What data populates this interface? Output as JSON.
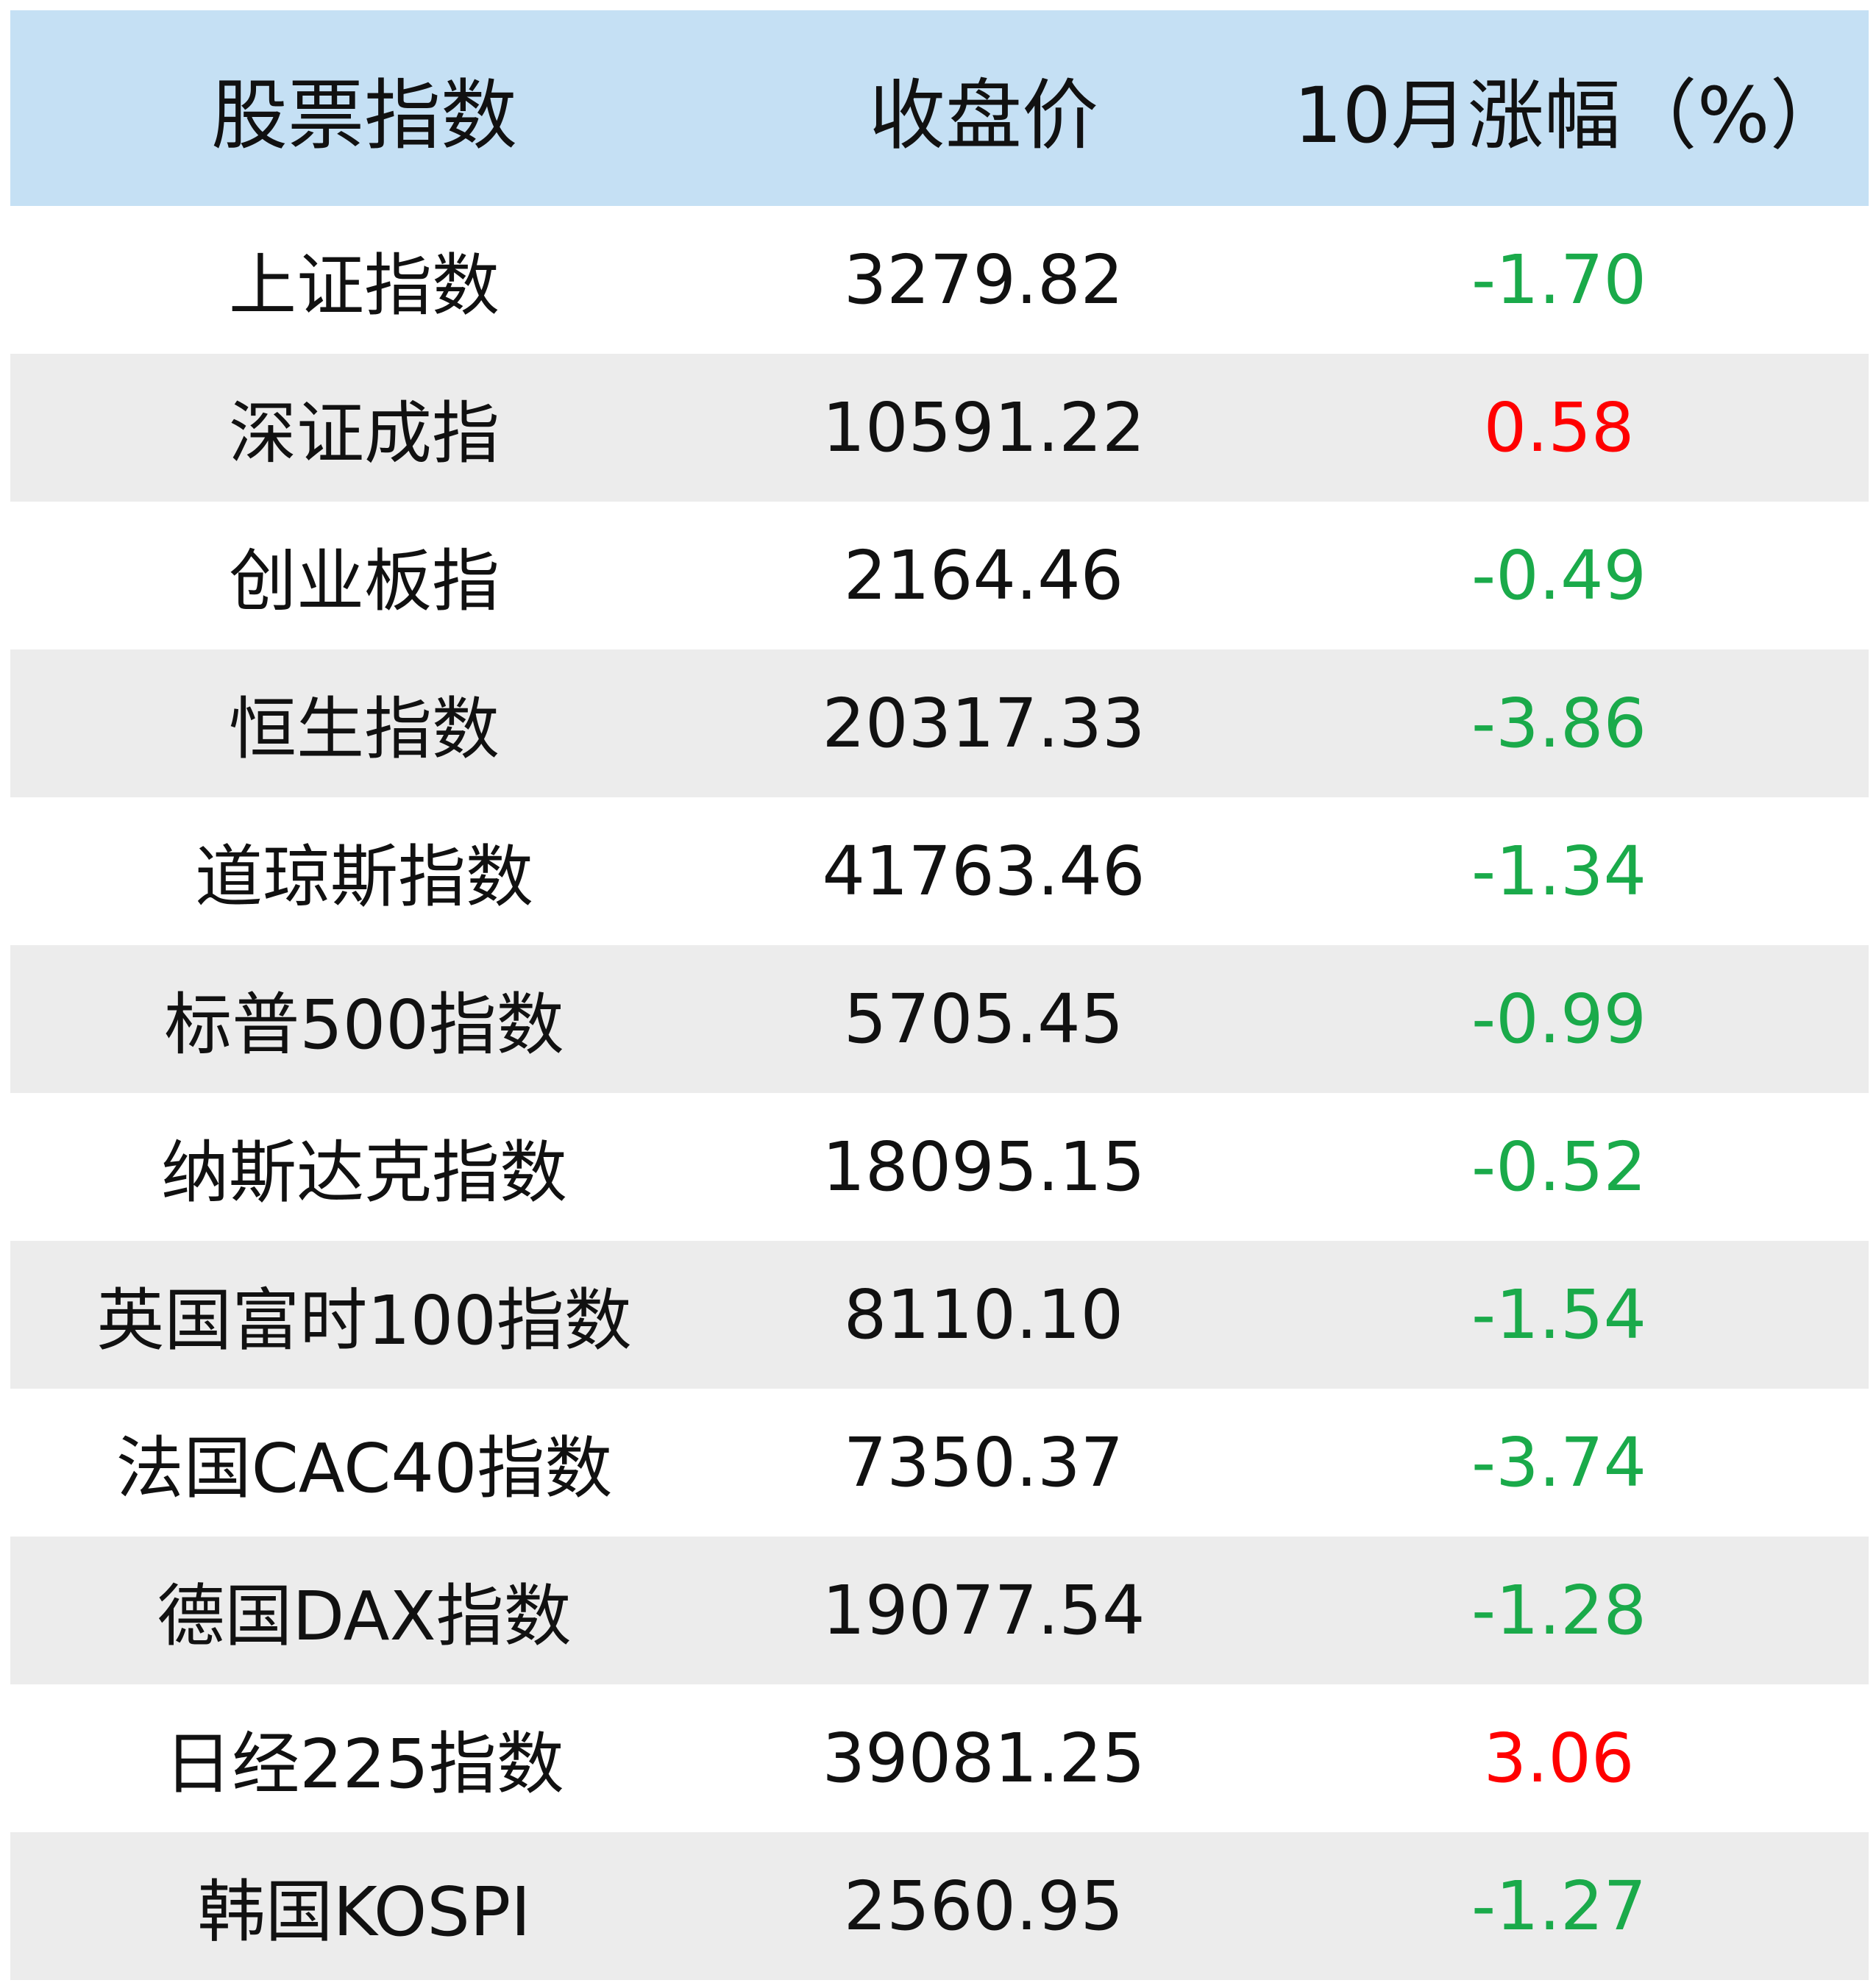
{
  "table": {
    "headers": [
      "股票指数",
      "收盘价",
      "10月涨幅（%）"
    ],
    "rows": [
      {
        "name": "上证指数",
        "close": "3279.82",
        "change": "-1.70",
        "direction": "down"
      },
      {
        "name": "深证成指",
        "close": "10591.22",
        "change": "0.58",
        "direction": "up"
      },
      {
        "name": "创业板指",
        "close": "2164.46",
        "change": "-0.49",
        "direction": "down"
      },
      {
        "name": "恒生指数",
        "close": "20317.33",
        "change": "-3.86",
        "direction": "down"
      },
      {
        "name": "道琼斯指数",
        "close": "41763.46",
        "change": "-1.34",
        "direction": "down"
      },
      {
        "name": "标普500指数",
        "close": "5705.45",
        "change": "-0.99",
        "direction": "down"
      },
      {
        "name": "纳斯达克指数",
        "close": "18095.15",
        "change": "-0.52",
        "direction": "down"
      },
      {
        "name": "英国富时100指数",
        "close": "8110.10",
        "change": "-1.54",
        "direction": "down"
      },
      {
        "name": "法国CAC40指数",
        "close": "7350.37",
        "change": "-3.74",
        "direction": "down"
      },
      {
        "name": "德国DAX指数",
        "close": "19077.54",
        "change": "-1.28",
        "direction": "down"
      },
      {
        "name": "日经225指数",
        "close": "39081.25",
        "change": "3.06",
        "direction": "up"
      },
      {
        "name": "韩国KOSPI",
        "close": "2560.95",
        "change": "-1.27",
        "direction": "down"
      }
    ]
  },
  "colors": {
    "header_bg": "#c5e0f4",
    "stripe_bg": "#ececec",
    "up": "#ff0000",
    "down": "#1aaa4a"
  }
}
